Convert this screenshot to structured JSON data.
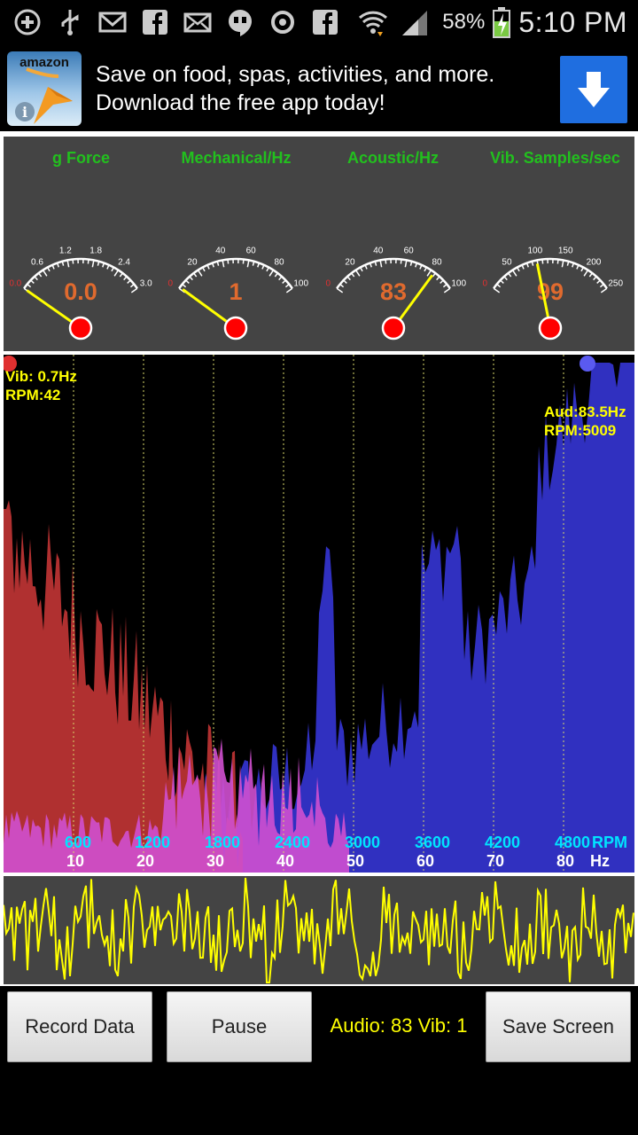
{
  "status_bar": {
    "icons": [
      "add-icon",
      "usb-icon",
      "gmail-icon",
      "facebook-icon",
      "email-icon",
      "hangouts-icon",
      "sync-icon",
      "facebook-icon",
      "wifi-icon",
      "signal-icon"
    ],
    "battery_percent": "58%",
    "time": "5:10 PM"
  },
  "ad": {
    "brand": "amazon",
    "line1": "Save on food, spas, activities, and more.",
    "line2": "Download the free app today!"
  },
  "gauges": [
    {
      "title": "g Force",
      "value": "0.0",
      "level": 0.0,
      "ticks": [
        "0.0",
        "0.6",
        "1.2",
        "1.8",
        "2.4",
        "3.0"
      ]
    },
    {
      "title": "Mechanical/Hz",
      "value": "1",
      "level": 0.01,
      "ticks": [
        "0",
        "20",
        "40",
        "60",
        "80",
        "100"
      ]
    },
    {
      "title": "Acoustic/Hz",
      "value": "83",
      "level": 0.83,
      "ticks": [
        "0",
        "20",
        "40",
        "60",
        "80",
        "100"
      ]
    },
    {
      "title": "Vib. Samples/sec",
      "value": "99",
      "level": 0.396,
      "ticks": [
        "0",
        "50",
        "100",
        "150",
        "200",
        "250"
      ]
    }
  ],
  "spectrum": {
    "vib_readout": {
      "line1": "Vib: 0.7Hz",
      "line2": "RPM:42"
    },
    "aud_readout": {
      "line1": "Aud:83.5Hz",
      "line2": "RPM:5009"
    },
    "rpm_ticks": [
      "600",
      "1200",
      "1800",
      "2400",
      "3000",
      "3600",
      "4200",
      "4800"
    ],
    "rpm_unit": "RPM",
    "hz_ticks": [
      "10",
      "20",
      "30",
      "40",
      "50",
      "60",
      "70",
      "80"
    ],
    "hz_unit": "Hz"
  },
  "toolbar": {
    "record_label": "Record Data",
    "pause_label": "Pause",
    "status": "Audio: 83 Vib: 1",
    "save_label": "Save Screen"
  },
  "colors": {
    "gauge_title": "#22c01e",
    "gauge_value": "#e06a2e",
    "mech_fill": "#b03030",
    "audio_fill": "#3030c0",
    "overlay_fill": "#d050d0",
    "wave": "#ffff00",
    "readout": "#ffff00",
    "rpm_label": "#00e4ff"
  }
}
